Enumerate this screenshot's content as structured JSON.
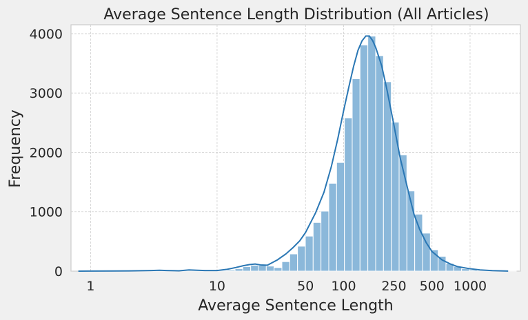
{
  "chart_data": {
    "type": "bar",
    "title": "Average Sentence Length Distribution (All Articles)",
    "xlabel": "Average Sentence Length",
    "ylabel": "Frequency",
    "x_scale": "log",
    "xlim": [
      0.7,
      2500
    ],
    "ylim": [
      0,
      4150
    ],
    "x_ticks": [
      1,
      10,
      50,
      100,
      250,
      500,
      1000
    ],
    "x_tick_labels": [
      "1",
      "10",
      "50",
      "100",
      "250",
      "500",
      "1000"
    ],
    "y_ticks": [
      0,
      1000,
      2000,
      3000,
      4000
    ],
    "y_tick_labels": [
      "0",
      "1000",
      "2000",
      "3000",
      "4000"
    ],
    "grid": true,
    "bin_edges": [
      0.7,
      0.807,
      0.93,
      1.072,
      1.236,
      1.425,
      1.643,
      1.894,
      2.183,
      2.517,
      2.901,
      3.345,
      3.856,
      4.445,
      5.124,
      5.907,
      6.81,
      7.85,
      9.05,
      10.43,
      12.03,
      13.87,
      15.98,
      18.43,
      21.24,
      24.49,
      28.23,
      32.54,
      37.51,
      43.25,
      49.85,
      57.47,
      66.26,
      76.38,
      88.05,
      101.5,
      117.0,
      134.9,
      155.5,
      179.3,
      206.7,
      238.3,
      274.7,
      316.6,
      365.0,
      420.8,
      485.1,
      559.2,
      644.7,
      743.2,
      856.8,
      987.7,
      1138.6,
      1312.6,
      1513.2,
      1744.5,
      2011.1,
      2318.4
    ],
    "counts": [
      0,
      3,
      3,
      2,
      2,
      1,
      2,
      1,
      4,
      6,
      12,
      4,
      3,
      5,
      8,
      4,
      3,
      5,
      8,
      12,
      20,
      40,
      75,
      100,
      100,
      85,
      60,
      160,
      290,
      420,
      590,
      820,
      1010,
      1480,
      1830,
      2580,
      3240,
      3810,
      3960,
      3630,
      3190,
      2510,
      1960,
      1350,
      960,
      640,
      360,
      250,
      130,
      80,
      40,
      20,
      10,
      5,
      3,
      2,
      1
    ],
    "kde": {
      "x": [
        0.8,
        1,
        1.5,
        2,
        3,
        3.5,
        4,
        5,
        6,
        7,
        8,
        10,
        12,
        14,
        16,
        18,
        20,
        22,
        25,
        30,
        35,
        40,
        45,
        50,
        60,
        70,
        80,
        90,
        100,
        110,
        120,
        130,
        140,
        150,
        160,
        170,
        180,
        200,
        220,
        250,
        280,
        320,
        360,
        400,
        450,
        500,
        600,
        700,
        800,
        1000,
        1200,
        1500,
        2000
      ],
      "y": [
        0,
        2,
        3,
        5,
        10,
        15,
        10,
        6,
        20,
        14,
        10,
        10,
        30,
        60,
        90,
        110,
        120,
        105,
        100,
        190,
        290,
        400,
        510,
        650,
        980,
        1330,
        1760,
        2230,
        2700,
        3100,
        3450,
        3720,
        3880,
        3960,
        3960,
        3880,
        3760,
        3460,
        3060,
        2460,
        1910,
        1400,
        960,
        700,
        480,
        330,
        190,
        120,
        75,
        40,
        20,
        8,
        2
      ]
    }
  }
}
